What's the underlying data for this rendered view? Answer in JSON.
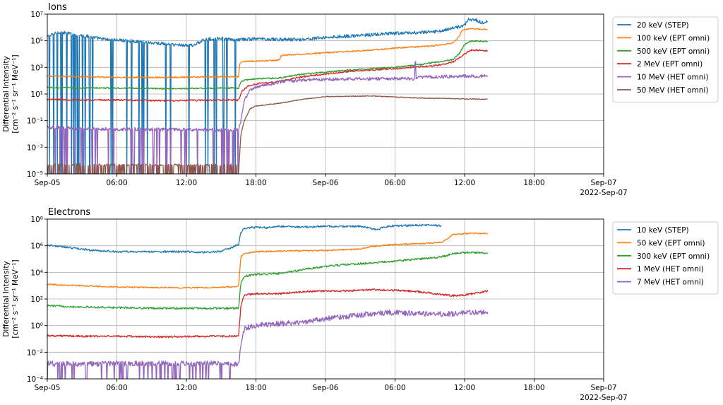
{
  "chart_data": [
    {
      "type": "line",
      "title": "Ions",
      "ylabel": "Differential Intensity",
      "ylabel_units": "[cm⁻² s⁻¹ sr⁻¹ MeV⁻¹]",
      "yscale": "log",
      "ylim_exp": [
        -5,
        7
      ],
      "ytick_exponents": [
        -5,
        -3,
        -1,
        1,
        3,
        5,
        7
      ],
      "x_unit": "hours since 2022-09-05 00:00",
      "xlim": [
        0,
        48
      ],
      "xtick_hours": [
        0,
        6,
        12,
        18,
        24,
        30,
        36,
        42,
        48
      ],
      "xtick_labels": [
        "Sep-05",
        "06:00",
        "12:00",
        "18:00",
        "Sep-06",
        "06:00",
        "12:00",
        "18:00",
        "Sep-07"
      ],
      "x_offset_label": "2022-Sep-07",
      "grid": true,
      "legend_position": "outside-right",
      "series": [
        {
          "name": "20 keV (STEP)",
          "color": "#1f77b4",
          "noise": 0.12,
          "points": [
            [
              0,
              5.3
            ],
            [
              1,
              5.65
            ],
            [
              3,
              5.4
            ],
            [
              5,
              5.1
            ],
            [
              7,
              5.0
            ],
            [
              9,
              4.85
            ],
            [
              11,
              4.7
            ],
            [
              12.5,
              4.65
            ],
            [
              13.2,
              4.9
            ],
            [
              13.6,
              5.1
            ],
            [
              15,
              5.2
            ],
            [
              16,
              5.05
            ],
            [
              18,
              5.15
            ],
            [
              20,
              5.1
            ],
            [
              22,
              5.1
            ],
            [
              24,
              5.25
            ],
            [
              27,
              5.4
            ],
            [
              30,
              5.55
            ],
            [
              33,
              5.65
            ],
            [
              34,
              5.75
            ],
            [
              35,
              5.95
            ],
            [
              35.8,
              6.1
            ],
            [
              36,
              6.2
            ],
            [
              36.3,
              6.6
            ],
            [
              37,
              6.55
            ],
            [
              37.7,
              6.3
            ],
            [
              38,
              6.55
            ],
            [
              37.99,
              6.55
            ]
          ]
        },
        {
          "name": "100 keV (EPT omni)",
          "color": "#ff7f0e",
          "noise": 0.05,
          "points": [
            [
              0,
              2.35
            ],
            [
              3,
              2.3
            ],
            [
              6,
              2.25
            ],
            [
              10,
              2.25
            ],
            [
              16,
              2.3
            ],
            [
              16.5,
              2.3
            ],
            [
              16.6,
              3.3
            ],
            [
              17,
              3.45
            ],
            [
              19,
              3.5
            ],
            [
              20,
              3.55
            ],
            [
              20.2,
              3.9
            ],
            [
              24,
              4.1
            ],
            [
              28,
              4.3
            ],
            [
              30,
              4.45
            ],
            [
              32,
              4.55
            ],
            [
              33,
              4.6
            ],
            [
              34,
              4.7
            ],
            [
              35,
              4.85
            ],
            [
              35.5,
              5.3
            ],
            [
              35.8,
              5.8
            ],
            [
              36.5,
              5.9
            ],
            [
              38,
              5.85
            ]
          ]
        },
        {
          "name": "500 keV (EPT omni)",
          "color": "#2ca02c",
          "noise": 0.05,
          "points": [
            [
              0,
              1.5
            ],
            [
              3,
              1.45
            ],
            [
              6,
              1.45
            ],
            [
              10,
              1.4
            ],
            [
              16,
              1.45
            ],
            [
              16.5,
              1.45
            ],
            [
              16.7,
              1.9
            ],
            [
              17,
              2.05
            ],
            [
              18,
              2.15
            ],
            [
              20,
              2.2
            ],
            [
              22,
              2.5
            ],
            [
              26,
              2.8
            ],
            [
              30,
              3.0
            ],
            [
              32,
              3.2
            ],
            [
              34,
              3.45
            ],
            [
              35,
              3.6
            ],
            [
              35.5,
              4.0
            ],
            [
              36,
              4.7
            ],
            [
              36.6,
              5.0
            ],
            [
              38,
              4.95
            ]
          ]
        },
        {
          "name": "2 MeV (EPT omni)",
          "color": "#d62728",
          "noise": 0.06,
          "points": [
            [
              0,
              0.6
            ],
            [
              3,
              0.55
            ],
            [
              6,
              0.55
            ],
            [
              10,
              0.5
            ],
            [
              16,
              0.55
            ],
            [
              16.5,
              0.55
            ],
            [
              16.8,
              1.2
            ],
            [
              17.3,
              1.6
            ],
            [
              18,
              1.75
            ],
            [
              20,
              1.95
            ],
            [
              22,
              2.3
            ],
            [
              24,
              2.5
            ],
            [
              26,
              2.7
            ],
            [
              30,
              2.9
            ],
            [
              33,
              3.1
            ],
            [
              34,
              3.2
            ],
            [
              35,
              3.4
            ],
            [
              35.5,
              3.7
            ],
            [
              36,
              4.0
            ],
            [
              36.5,
              4.3
            ],
            [
              37,
              4.3
            ],
            [
              38,
              4.25
            ]
          ]
        },
        {
          "name": "10 MeV (HET omni)",
          "color": "#9467bd",
          "noise": 0.12,
          "points": [
            [
              0,
              -1.5
            ],
            [
              3,
              -1.6
            ],
            [
              6,
              -1.65
            ],
            [
              10,
              -1.65
            ],
            [
              14,
              -1.7
            ],
            [
              16.5,
              -1.7
            ],
            [
              16.7,
              -1.0
            ],
            [
              17,
              0.5
            ],
            [
              17.5,
              1.3
            ],
            [
              18,
              1.5
            ],
            [
              19,
              1.7
            ],
            [
              20,
              1.9
            ],
            [
              22,
              2.05
            ],
            [
              24,
              2.1
            ],
            [
              28,
              2.15
            ],
            [
              31.7,
              2.15
            ],
            [
              31.75,
              4.5
            ],
            [
              31.8,
              2.25
            ],
            [
              34,
              2.3
            ],
            [
              36,
              2.35
            ],
            [
              38,
              2.35
            ]
          ]
        },
        {
          "name": "50 MeV (HET omni)",
          "color": "#8c564b",
          "noise": 0.03,
          "points": [
            [
              16.5,
              -5
            ],
            [
              16.7,
              -2
            ],
            [
              17,
              -1.0
            ],
            [
              17.5,
              -0.1
            ],
            [
              18,
              0.1
            ],
            [
              20,
              0.3
            ],
            [
              22,
              0.6
            ],
            [
              24,
              0.8
            ],
            [
              28,
              0.85
            ],
            [
              32,
              0.7
            ],
            [
              35,
              0.65
            ],
            [
              38,
              0.6
            ]
          ]
        }
      ]
    },
    {
      "type": "line",
      "title": "Electrons",
      "ylabel": "Differential Intensity",
      "ylabel_units": "[cm⁻² s⁻¹ sr⁻¹ MeV⁻¹]",
      "yscale": "log",
      "ylim_exp": [
        -4,
        8
      ],
      "ytick_exponents": [
        -4,
        -2,
        0,
        2,
        4,
        6,
        8
      ],
      "x_unit": "hours since 2022-09-05 00:00",
      "xlim": [
        0,
        48
      ],
      "xtick_hours": [
        0,
        6,
        12,
        18,
        24,
        30,
        36,
        42,
        48
      ],
      "xtick_labels": [
        "Sep-05",
        "06:00",
        "12:00",
        "18:00",
        "Sep-06",
        "06:00",
        "12:00",
        "18:00",
        "Sep-07"
      ],
      "x_offset_label": "2022-Sep-07",
      "grid": true,
      "legend_position": "outside-right",
      "series": [
        {
          "name": "10 keV (STEP)",
          "color": "#1f77b4",
          "noise": 0.07,
          "points": [
            [
              0,
              6.05
            ],
            [
              2,
              5.85
            ],
            [
              4,
              5.65
            ],
            [
              6,
              5.55
            ],
            [
              9,
              5.55
            ],
            [
              12,
              5.55
            ],
            [
              14,
              5.5
            ],
            [
              15,
              5.6
            ],
            [
              16,
              5.9
            ],
            [
              16.5,
              6.1
            ],
            [
              16.7,
              7.0
            ],
            [
              17,
              7.3
            ],
            [
              18,
              7.4
            ],
            [
              19,
              7.35
            ],
            [
              20,
              7.45
            ],
            [
              22,
              7.4
            ],
            [
              24,
              7.45
            ],
            [
              27,
              7.45
            ],
            [
              28.5,
              7.2
            ],
            [
              29,
              7.4
            ],
            [
              30,
              7.5
            ],
            [
              33,
              7.55
            ],
            [
              34,
              7.5
            ]
          ]
        },
        {
          "name": "50 keV (EPT omni)",
          "color": "#ff7f0e",
          "noise": 0.05,
          "points": [
            [
              0,
              3.1
            ],
            [
              3,
              3.0
            ],
            [
              6,
              2.9
            ],
            [
              10,
              2.85
            ],
            [
              14,
              2.85
            ],
            [
              16,
              2.9
            ],
            [
              16.5,
              2.95
            ],
            [
              16.7,
              5.2
            ],
            [
              17,
              5.4
            ],
            [
              18,
              5.55
            ],
            [
              20,
              5.6
            ],
            [
              24,
              5.65
            ],
            [
              27,
              5.75
            ],
            [
              28,
              5.95
            ],
            [
              30,
              6.1
            ],
            [
              32,
              6.15
            ],
            [
              34,
              6.25
            ],
            [
              34.5,
              6.5
            ],
            [
              35,
              6.85
            ],
            [
              37,
              6.95
            ],
            [
              38,
              6.9
            ]
          ]
        },
        {
          "name": "300 keV (EPT omni)",
          "color": "#2ca02c",
          "noise": 0.07,
          "points": [
            [
              0,
              1.5
            ],
            [
              3,
              1.4
            ],
            [
              6,
              1.35
            ],
            [
              10,
              1.3
            ],
            [
              14,
              1.3
            ],
            [
              16.5,
              1.3
            ],
            [
              16.7,
              3.2
            ],
            [
              17,
              3.7
            ],
            [
              18,
              3.85
            ],
            [
              20,
              3.9
            ],
            [
              22,
              4.2
            ],
            [
              24,
              4.45
            ],
            [
              26,
              4.6
            ],
            [
              28,
              4.7
            ],
            [
              30,
              4.85
            ],
            [
              32,
              5.0
            ],
            [
              34,
              5.15
            ],
            [
              35,
              5.4
            ],
            [
              36,
              5.5
            ],
            [
              38,
              5.45
            ]
          ]
        },
        {
          "name": "1 MeV (HET omni)",
          "color": "#d62728",
          "noise": 0.07,
          "points": [
            [
              0,
              -0.75
            ],
            [
              3,
              -0.8
            ],
            [
              6,
              -0.8
            ],
            [
              10,
              -0.85
            ],
            [
              14,
              -0.8
            ],
            [
              16.5,
              -0.8
            ],
            [
              16.7,
              1.5
            ],
            [
              17,
              2.3
            ],
            [
              18,
              2.4
            ],
            [
              20,
              2.4
            ],
            [
              22,
              2.55
            ],
            [
              24,
              2.6
            ],
            [
              26,
              2.6
            ],
            [
              28,
              2.7
            ],
            [
              30,
              2.65
            ],
            [
              32,
              2.55
            ],
            [
              34,
              2.35
            ],
            [
              35,
              2.25
            ],
            [
              36,
              2.3
            ],
            [
              37,
              2.45
            ],
            [
              38,
              2.6
            ]
          ]
        },
        {
          "name": "7 MeV (HET omni)",
          "color": "#9467bd",
          "noise": 0.2,
          "points": [
            [
              0,
              -2.85
            ],
            [
              3,
              -2.9
            ],
            [
              6,
              -2.85
            ],
            [
              10,
              -2.85
            ],
            [
              14,
              -2.85
            ],
            [
              16.5,
              -2.9
            ],
            [
              16.7,
              -1.5
            ],
            [
              17,
              -0.2
            ],
            [
              18,
              0.0
            ],
            [
              20,
              0.15
            ],
            [
              22,
              0.25
            ],
            [
              24,
              0.5
            ],
            [
              26,
              0.7
            ],
            [
              28,
              0.9
            ],
            [
              30,
              1.0
            ],
            [
              32,
              0.9
            ],
            [
              34,
              0.85
            ],
            [
              36,
              0.95
            ],
            [
              38,
              1.05
            ]
          ]
        }
      ]
    }
  ]
}
